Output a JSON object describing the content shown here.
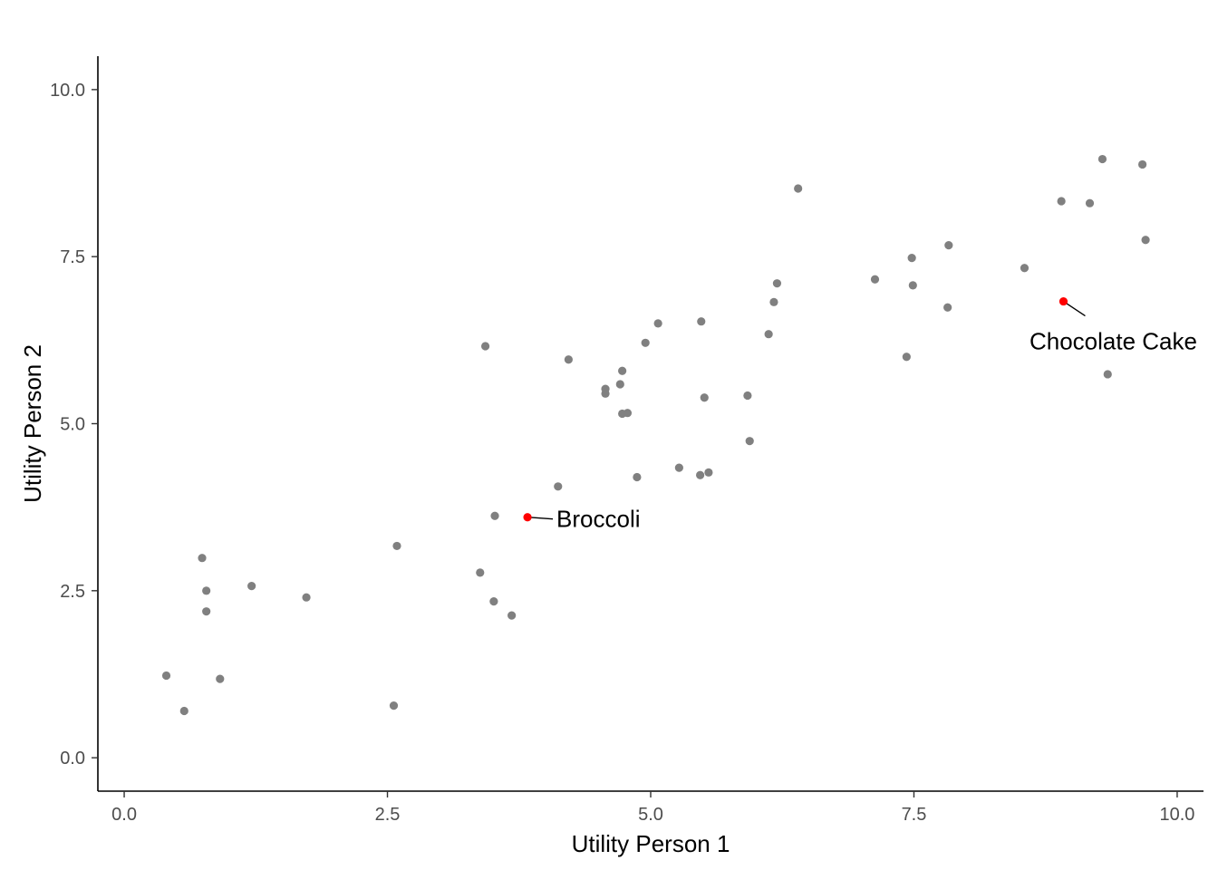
{
  "chart_data": {
    "type": "scatter",
    "xlabel": "Utility Person 1",
    "ylabel": "Utility Person 2",
    "xlim": [
      -0.25,
      10.25
    ],
    "ylim": [
      -0.5,
      10.5
    ],
    "xticks": [
      0.0,
      2.5,
      5.0,
      7.5,
      10.0
    ],
    "xtick_labels": [
      "0.0",
      "2.5",
      "5.0",
      "7.5",
      "10.0"
    ],
    "yticks": [
      0.0,
      2.5,
      5.0,
      7.5,
      10.0
    ],
    "ytick_labels": [
      "0.0",
      "2.5",
      "5.0",
      "7.5",
      "10.0"
    ],
    "grid": false,
    "point_color": "#808080",
    "highlight_color": "#ff0000",
    "points": [
      {
        "x": 0.4,
        "y": 1.23
      },
      {
        "x": 0.57,
        "y": 0.7
      },
      {
        "x": 0.74,
        "y": 2.99
      },
      {
        "x": 0.78,
        "y": 2.5
      },
      {
        "x": 0.78,
        "y": 2.19
      },
      {
        "x": 0.91,
        "y": 1.18
      },
      {
        "x": 1.21,
        "y": 2.57
      },
      {
        "x": 1.73,
        "y": 2.4
      },
      {
        "x": 2.56,
        "y": 0.78
      },
      {
        "x": 2.59,
        "y": 3.17
      },
      {
        "x": 3.38,
        "y": 2.77
      },
      {
        "x": 3.43,
        "y": 6.16
      },
      {
        "x": 3.51,
        "y": 2.34
      },
      {
        "x": 3.52,
        "y": 3.62
      },
      {
        "x": 3.68,
        "y": 2.13
      },
      {
        "x": 4.12,
        "y": 4.06
      },
      {
        "x": 4.22,
        "y": 5.96
      },
      {
        "x": 4.57,
        "y": 5.52
      },
      {
        "x": 4.57,
        "y": 5.45
      },
      {
        "x": 4.71,
        "y": 5.59
      },
      {
        "x": 4.73,
        "y": 5.79
      },
      {
        "x": 4.73,
        "y": 5.15
      },
      {
        "x": 4.78,
        "y": 5.16
      },
      {
        "x": 4.87,
        "y": 4.2
      },
      {
        "x": 4.95,
        "y": 6.21
      },
      {
        "x": 5.07,
        "y": 6.5
      },
      {
        "x": 5.27,
        "y": 4.34
      },
      {
        "x": 5.47,
        "y": 4.23
      },
      {
        "x": 5.48,
        "y": 6.53
      },
      {
        "x": 5.51,
        "y": 5.39
      },
      {
        "x": 5.55,
        "y": 4.27
      },
      {
        "x": 5.92,
        "y": 5.42
      },
      {
        "x": 5.94,
        "y": 4.74
      },
      {
        "x": 6.12,
        "y": 6.34
      },
      {
        "x": 6.17,
        "y": 6.82
      },
      {
        "x": 6.2,
        "y": 7.1
      },
      {
        "x": 6.4,
        "y": 8.52
      },
      {
        "x": 7.13,
        "y": 7.16
      },
      {
        "x": 7.43,
        "y": 6.0
      },
      {
        "x": 7.48,
        "y": 7.48
      },
      {
        "x": 7.49,
        "y": 7.07
      },
      {
        "x": 7.82,
        "y": 6.74
      },
      {
        "x": 7.83,
        "y": 7.67
      },
      {
        "x": 8.55,
        "y": 7.33
      },
      {
        "x": 8.9,
        "y": 8.33
      },
      {
        "x": 9.17,
        "y": 8.3
      },
      {
        "x": 9.29,
        "y": 8.96
      },
      {
        "x": 9.34,
        "y": 5.74
      },
      {
        "x": 9.67,
        "y": 8.88
      },
      {
        "x": 9.7,
        "y": 7.75
      }
    ],
    "highlighted": [
      {
        "x": 3.83,
        "y": 3.6,
        "label": "Broccoli"
      },
      {
        "x": 8.92,
        "y": 6.83,
        "label": "Chocolate Cake"
      }
    ]
  }
}
